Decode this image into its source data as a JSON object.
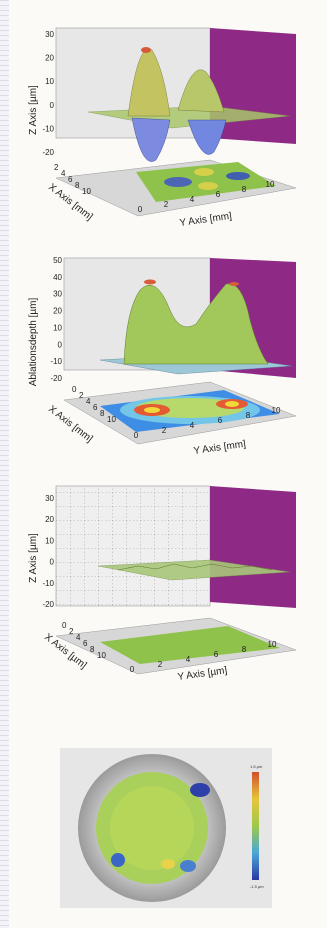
{
  "chart_data": [
    {
      "type": "surface3d",
      "zlabel": "Z Axis [µm]",
      "xlabel": "X Axis [mm]",
      "ylabel": "Y Axis [mm]",
      "z_ticks": [
        30,
        20,
        10,
        0,
        -10,
        -20
      ],
      "x_ticks": [
        2,
        4,
        6,
        8,
        10
      ],
      "y_ticks": [
        0,
        2,
        4,
        6,
        8,
        10
      ],
      "z_range": [
        -25,
        35
      ],
      "surface": "two peaks (max ~30) and two valleys (min ~-22) on a flat plane at 0"
    },
    {
      "type": "surface3d",
      "zlabel": "Ablationsdepth [µm]",
      "xlabel": "X Axis [mm]",
      "ylabel": "Y Axis [mm]",
      "z_ticks": [
        50,
        40,
        30,
        20,
        10,
        0,
        -10,
        -20
      ],
      "x_ticks": [
        0,
        2,
        4,
        6,
        8,
        10
      ],
      "y_ticks": [
        0,
        2,
        4,
        6,
        8,
        10
      ],
      "z_range": [
        -20,
        50
      ],
      "surface": "two humps (~48 and ~42) on a raised ring plateau, base at 0"
    },
    {
      "type": "surface3d",
      "zlabel": "Z Axis [µm]",
      "xlabel": "X Axis [µm]",
      "ylabel": "Y Axis [µm]",
      "z_ticks": [
        30,
        20,
        10,
        0,
        -10,
        -20
      ],
      "x_ticks": [
        0,
        2,
        4,
        6,
        8,
        10
      ],
      "y_ticks": [
        0,
        2,
        4,
        6,
        8,
        10
      ],
      "z_range": [
        -25,
        35
      ],
      "surface": "nearly flat residual plane at 0 with small ripples"
    },
    {
      "type": "heatmap",
      "colorbar_labels": [
        "1.5 µm",
        "-1.5 µm"
      ],
      "description_shape": "circular map inside gray ring"
    }
  ],
  "colors": {
    "wall": "#8e2a86",
    "grid_bg": "#e7e7e7",
    "floor_green": "#8fc24a"
  }
}
